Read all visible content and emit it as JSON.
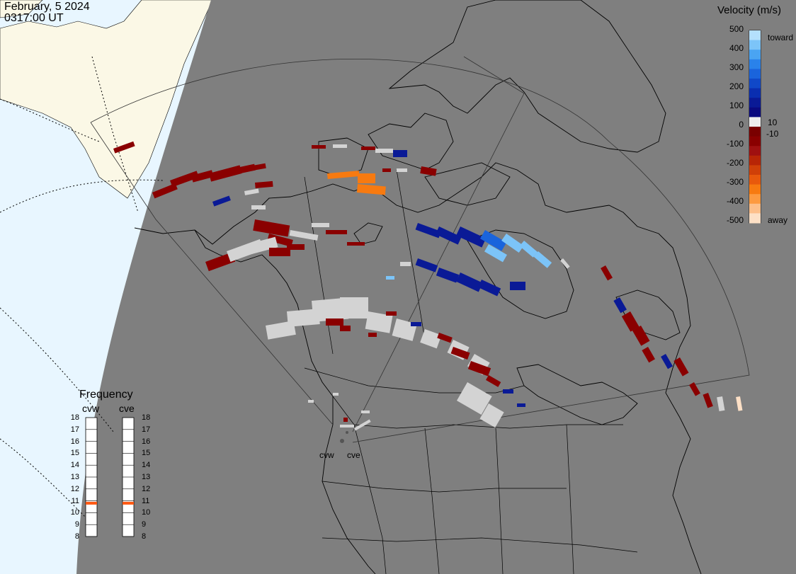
{
  "header": {
    "date": "February, 5 2024",
    "time": "0317:00 UT"
  },
  "colors": {
    "ocean": "#e8f6ff",
    "land_day": "#fbf8e6",
    "night": "#7f7f7f",
    "ground_scatter": "#d3d3d3",
    "velocity_scale": [
      "#fde0c6",
      "#fdbf8a",
      "#fd9a40",
      "#f77a10",
      "#e8590c",
      "#d04008",
      "#b82506",
      "#a01010",
      "#8a0000",
      "#7a0000",
      "#eeeeee",
      "#0a0a80",
      "#0a1a96",
      "#0a2eb0",
      "#1048c8",
      "#1a64dc",
      "#2a82ea",
      "#4aa4f2",
      "#7cc4f8",
      "#b4e0fc"
    ]
  },
  "velocity_legend": {
    "title": "Velocity (m/s)",
    "ticks": [
      "500",
      "400",
      "300",
      "200",
      "100",
      "0",
      "-100",
      "-200",
      "-300",
      "-400",
      "-500"
    ],
    "small_ticks": [
      "10",
      "-10"
    ],
    "top_label": "toward",
    "bottom_label": "away"
  },
  "frequency_legend": {
    "title": "Frequency",
    "radars": [
      "cvw",
      "cve"
    ],
    "ticks": [
      "18",
      "17",
      "16",
      "15",
      "14",
      "13",
      "12",
      "11",
      "10",
      "9",
      "8"
    ],
    "marker_value_mhz": 10.8,
    "marker_color": "#ff5a14"
  },
  "map_labels": {
    "left_radar": "cvw",
    "right_radar": "cve"
  }
}
